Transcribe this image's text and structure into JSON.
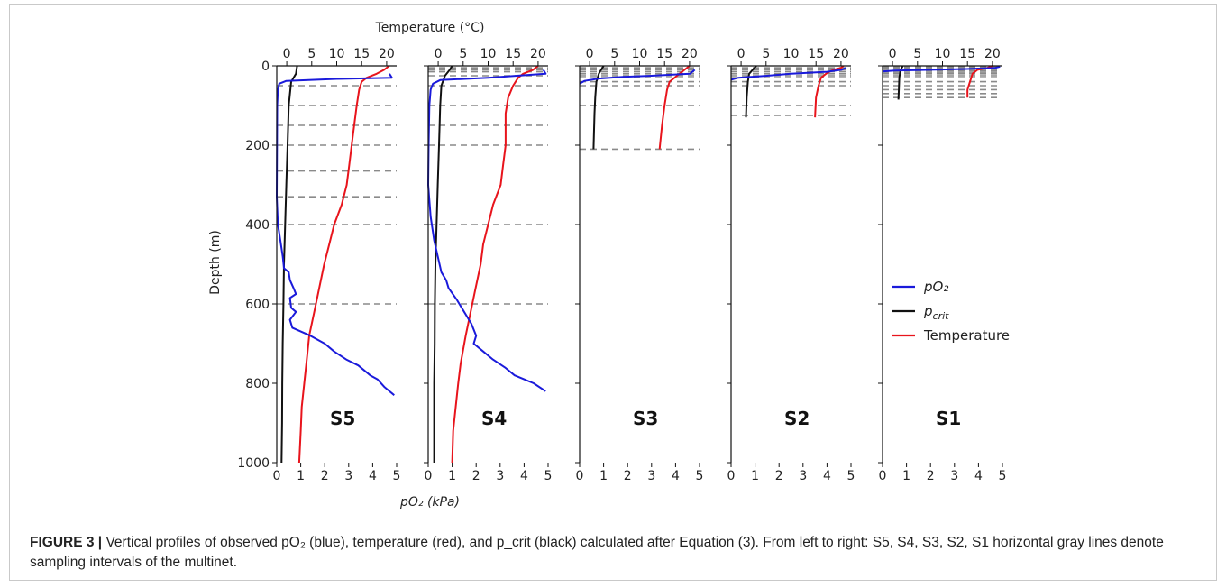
{
  "figure": {
    "label": "FIGURE 3 |",
    "caption": " Vertical profiles of observed pO₂ (blue), temperature (red), and p_crit (black) calculated after Equation (3). From left to right: S5, S4, S3, S2, S1 horizontal gray lines denote sampling intervals of the multinet."
  },
  "chart_data": {
    "type": "line",
    "top_axis_label": "Temperature (°C)",
    "bottom_axis_label": "pO₂ (kPa)",
    "ylabel": "Depth (m)",
    "ylim": [
      1000,
      0
    ],
    "xlim_po2": [
      0,
      5
    ],
    "xlim_temperature": [
      -2,
      22
    ],
    "x_ticks_po2": [
      "0",
      "1",
      "2",
      "3",
      "4",
      "5"
    ],
    "x_ticks_temperature": [
      "0",
      "5",
      "10",
      "15",
      "20"
    ],
    "y_ticks": [
      "0",
      "200",
      "400",
      "600",
      "800",
      "1000"
    ],
    "grid": false,
    "legend_position": "right",
    "legend": [
      {
        "label": "pO₂",
        "color": "#1a1adb"
      },
      {
        "label": "p_crit",
        "color": "#111111"
      },
      {
        "label": "Temperature",
        "color": "#e8141c"
      }
    ],
    "colors": {
      "po2": "#1a1adb",
      "pcrit": "#111111",
      "temperature": "#e8141c",
      "sampling": "#8a8a8a"
    },
    "panels": [
      {
        "station": "S5",
        "sampling_depths_m": [
          50,
          100,
          150,
          200,
          265,
          330,
          400,
          600
        ],
        "po2_kpa": [
          [
            4.7,
            20
          ],
          [
            4.8,
            30
          ],
          [
            2.5,
            33
          ],
          [
            0.4,
            38
          ],
          [
            0.1,
            45
          ],
          [
            0.05,
            60
          ],
          [
            0.02,
            100
          ],
          [
            0.01,
            200
          ],
          [
            0,
            330
          ],
          [
            0.05,
            400
          ],
          [
            0.15,
            440
          ],
          [
            0.25,
            480
          ],
          [
            0.3,
            510
          ],
          [
            0.5,
            520
          ],
          [
            0.55,
            540
          ],
          [
            0.7,
            560
          ],
          [
            0.8,
            575
          ],
          [
            0.55,
            585
          ],
          [
            0.6,
            610
          ],
          [
            0.8,
            620
          ],
          [
            0.55,
            640
          ],
          [
            0.65,
            660
          ],
          [
            1.4,
            680
          ],
          [
            2.0,
            700
          ],
          [
            2.4,
            720
          ],
          [
            2.9,
            740
          ],
          [
            3.4,
            755
          ],
          [
            3.9,
            780
          ],
          [
            4.2,
            790
          ],
          [
            4.5,
            810
          ],
          [
            4.9,
            830
          ]
        ],
        "pcrit_kpa": [
          [
            0.85,
            0
          ],
          [
            0.8,
            20
          ],
          [
            0.6,
            40
          ],
          [
            0.5,
            100
          ],
          [
            0.45,
            200
          ],
          [
            0.4,
            300
          ],
          [
            0.35,
            400
          ],
          [
            0.3,
            500
          ],
          [
            0.28,
            600
          ],
          [
            0.25,
            700
          ],
          [
            0.23,
            800
          ],
          [
            0.22,
            900
          ],
          [
            0.2,
            1000
          ]
        ],
        "temperature_c": [
          [
            20.5,
            0
          ],
          [
            19.5,
            10
          ],
          [
            18,
            20
          ],
          [
            16,
            30
          ],
          [
            15,
            40
          ],
          [
            14.5,
            60
          ],
          [
            14,
            100
          ],
          [
            13.5,
            150
          ],
          [
            13,
            200
          ],
          [
            12.5,
            250
          ],
          [
            12,
            300
          ],
          [
            11,
            350
          ],
          [
            9.5,
            400
          ],
          [
            8.5,
            450
          ],
          [
            7.5,
            500
          ],
          [
            6.5,
            560
          ],
          [
            5.5,
            620
          ],
          [
            4.5,
            680
          ],
          [
            4,
            740
          ],
          [
            3.5,
            800
          ],
          [
            3,
            860
          ],
          [
            2.8,
            920
          ],
          [
            2.5,
            1000
          ]
        ]
      },
      {
        "station": "S4",
        "sampling_depths_m": [
          5,
          10,
          15,
          25,
          50,
          100,
          150,
          200,
          400,
          600
        ],
        "po2_kpa": [
          [
            4.8,
            10
          ],
          [
            4.9,
            20
          ],
          [
            2.5,
            30
          ],
          [
            0.5,
            36
          ],
          [
            0.2,
            45
          ],
          [
            0.1,
            60
          ],
          [
            0.05,
            100
          ],
          [
            0.02,
            200
          ],
          [
            0,
            300
          ],
          [
            0.1,
            380
          ],
          [
            0.25,
            440
          ],
          [
            0.4,
            480
          ],
          [
            0.55,
            520
          ],
          [
            0.75,
            540
          ],
          [
            0.85,
            560
          ],
          [
            1.2,
            590
          ],
          [
            1.5,
            620
          ],
          [
            1.8,
            650
          ],
          [
            2.0,
            680
          ],
          [
            1.9,
            700
          ],
          [
            2.3,
            720
          ],
          [
            2.7,
            740
          ],
          [
            3.2,
            760
          ],
          [
            3.6,
            780
          ],
          [
            4.0,
            790
          ],
          [
            4.4,
            800
          ],
          [
            4.9,
            820
          ]
        ],
        "pcrit_kpa": [
          [
            1.0,
            0
          ],
          [
            0.9,
            10
          ],
          [
            0.7,
            25
          ],
          [
            0.55,
            50
          ],
          [
            0.5,
            100
          ],
          [
            0.45,
            200
          ],
          [
            0.4,
            300
          ],
          [
            0.35,
            400
          ],
          [
            0.3,
            500
          ],
          [
            0.28,
            600
          ],
          [
            0.27,
            700
          ],
          [
            0.25,
            800
          ],
          [
            0.25,
            900
          ],
          [
            0.25,
            1000
          ]
        ],
        "temperature_c": [
          [
            20,
            0
          ],
          [
            19,
            10
          ],
          [
            17,
            20
          ],
          [
            16,
            30
          ],
          [
            15,
            50
          ],
          [
            14,
            80
          ],
          [
            13.5,
            120
          ],
          [
            13.5,
            200
          ],
          [
            13,
            250
          ],
          [
            12.5,
            300
          ],
          [
            11,
            350
          ],
          [
            10,
            400
          ],
          [
            9,
            450
          ],
          [
            8.5,
            500
          ],
          [
            7.5,
            560
          ],
          [
            6.5,
            620
          ],
          [
            5.5,
            680
          ],
          [
            4.5,
            750
          ],
          [
            4,
            800
          ],
          [
            3.5,
            860
          ],
          [
            3,
            920
          ],
          [
            2.8,
            1000
          ]
        ]
      },
      {
        "station": "S3",
        "sampling_depths_m": [
          5,
          10,
          15,
          20,
          25,
          30,
          40,
          50,
          100,
          210
        ],
        "po2_kpa": [
          [
            4.8,
            10
          ],
          [
            4.6,
            20
          ],
          [
            3.0,
            25
          ],
          [
            1.8,
            28
          ],
          [
            0.8,
            32
          ],
          [
            0.2,
            38
          ],
          [
            0,
            45
          ]
        ],
        "pcrit_kpa": [
          [
            1.0,
            0
          ],
          [
            0.9,
            10
          ],
          [
            0.8,
            20
          ],
          [
            0.7,
            40
          ],
          [
            0.65,
            80
          ],
          [
            0.62,
            120
          ],
          [
            0.6,
            160
          ],
          [
            0.58,
            210
          ]
        ],
        "temperature_c": [
          [
            20,
            0
          ],
          [
            19,
            10
          ],
          [
            18,
            20
          ],
          [
            17,
            30
          ],
          [
            16,
            40
          ],
          [
            15.5,
            60
          ],
          [
            15,
            100
          ],
          [
            14.5,
            150
          ],
          [
            14,
            210
          ]
        ]
      },
      {
        "station": "S2",
        "sampling_depths_m": [
          5,
          10,
          15,
          20,
          25,
          30,
          40,
          50,
          100,
          125
        ],
        "po2_kpa": [
          [
            4.8,
            5
          ],
          [
            4.6,
            10
          ],
          [
            4.0,
            15
          ],
          [
            2.5,
            20
          ],
          [
            1.5,
            25
          ],
          [
            0.3,
            30
          ],
          [
            0,
            35
          ]
        ],
        "pcrit_kpa": [
          [
            1.05,
            0
          ],
          [
            0.9,
            10
          ],
          [
            0.75,
            20
          ],
          [
            0.7,
            40
          ],
          [
            0.65,
            80
          ],
          [
            0.62,
            130
          ]
        ],
        "temperature_c": [
          [
            20.5,
            0
          ],
          [
            20,
            5
          ],
          [
            18.5,
            10
          ],
          [
            17,
            20
          ],
          [
            16,
            30
          ],
          [
            15.5,
            50
          ],
          [
            15,
            80
          ],
          [
            14.8,
            130
          ]
        ]
      },
      {
        "station": "S1",
        "sampling_depths_m": [
          2,
          5,
          8,
          12,
          16,
          20,
          25,
          30,
          40,
          50,
          60,
          70,
          80
        ],
        "po2_kpa": [
          [
            4.9,
            2
          ],
          [
            4.7,
            5
          ],
          [
            3.5,
            8
          ],
          [
            2.0,
            10
          ],
          [
            0.5,
            12
          ],
          [
            0,
            14
          ]
        ],
        "pcrit_kpa": [
          [
            0.85,
            0
          ],
          [
            0.75,
            10
          ],
          [
            0.7,
            30
          ],
          [
            0.68,
            60
          ],
          [
            0.66,
            85
          ]
        ],
        "temperature_c": [
          [
            20,
            0
          ],
          [
            19,
            5
          ],
          [
            17,
            10
          ],
          [
            16,
            20
          ],
          [
            15.5,
            40
          ],
          [
            15,
            60
          ],
          [
            15,
            80
          ]
        ]
      }
    ]
  }
}
